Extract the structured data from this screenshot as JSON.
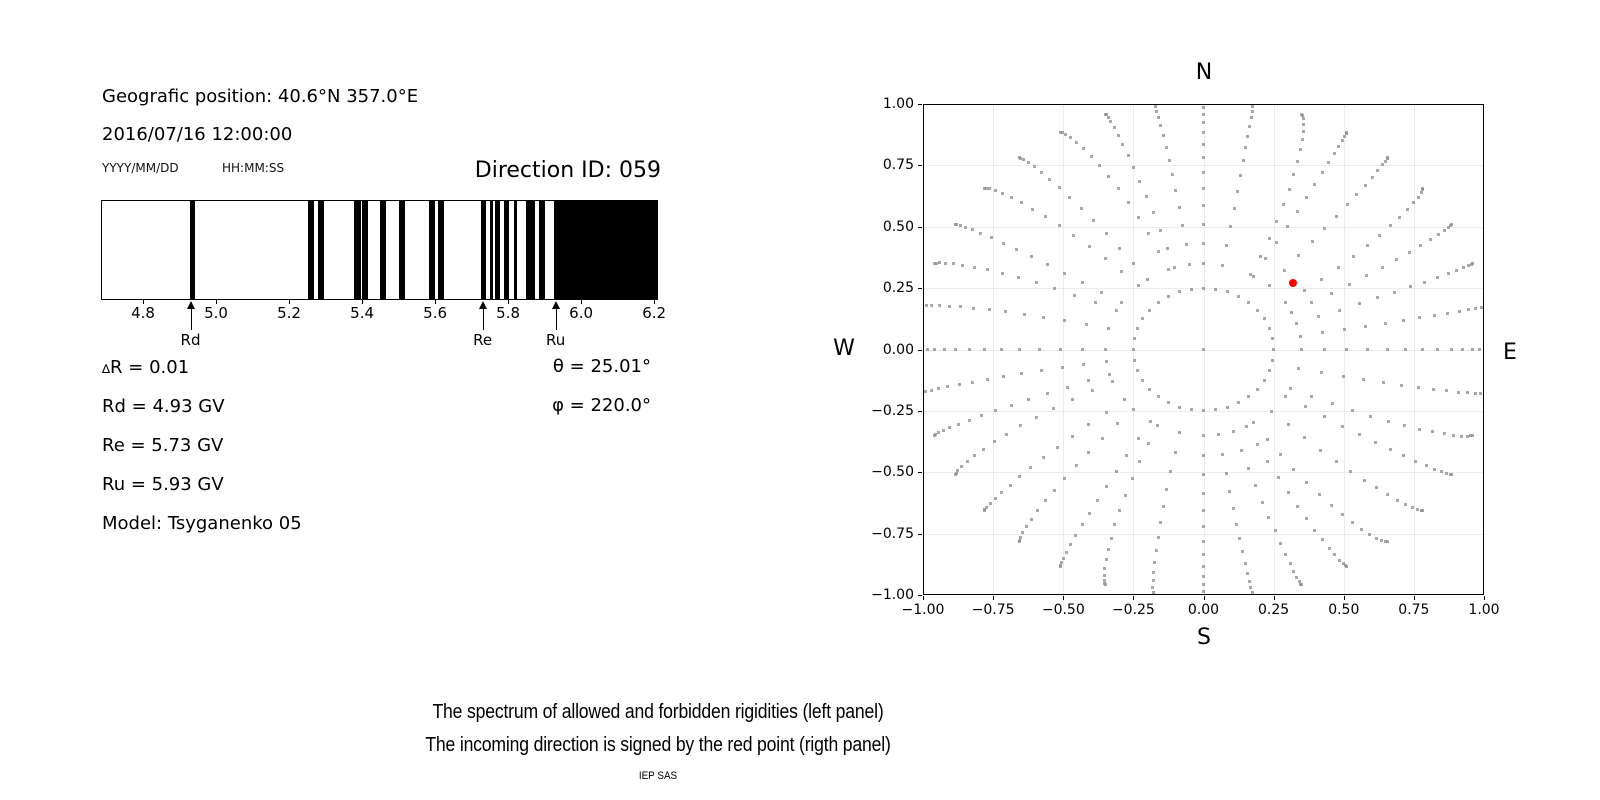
{
  "left_panel": {
    "geo_position": "Geografic position: 40.6°N 357.0°E",
    "datetime": "2016/07/16 12:00:00",
    "date_format": "YYYY/MM/DD",
    "time_format": "HH:MM:SS",
    "direction_id": "Direction ID: 059",
    "delta_symbol": "∆",
    "delta_r": "R = 0.01",
    "rd": "Rd = 4.93 GV",
    "re": "Re = 5.73 GV",
    "ru": "Ru = 5.93 GV",
    "model": "Model: Tsyganenko 05",
    "theta": "θ = 25.01°",
    "phi": "φ = 220.0°"
  },
  "caption": {
    "line1": "The spectrum of allowed and forbidden rigidities (left panel)",
    "line2": "The incoming direction is signed by the red point (rigth panel)",
    "credit": "IEP SAS"
  },
  "chart_data": [
    {
      "type": "barcode",
      "title": "Rigidity spectrum of allowed (white) and forbidden (black) bands",
      "x_range": [
        4.685,
        6.205
      ],
      "x_ticks": {
        "values": [
          4.8,
          5.0,
          5.2,
          5.4,
          5.6,
          5.8,
          6.0,
          6.2
        ],
        "labels": [
          "4.8",
          "5.0",
          "5.2",
          "5.4",
          "5.6",
          "5.8",
          "6.0",
          "6.2"
        ]
      },
      "forbidden_color": "#000000",
      "allowed_color": "#ffffff",
      "forbidden_bands": [
        [
          4.925,
          4.941
        ],
        [
          5.248,
          5.267
        ],
        [
          5.276,
          5.292
        ],
        [
          5.376,
          5.394
        ],
        [
          5.398,
          5.414
        ],
        [
          5.447,
          5.463
        ],
        [
          5.497,
          5.515
        ],
        [
          5.581,
          5.597
        ],
        [
          5.606,
          5.621
        ],
        [
          5.724,
          5.736
        ],
        [
          5.747,
          5.756
        ],
        [
          5.762,
          5.776
        ],
        [
          5.785,
          5.799
        ],
        [
          5.813,
          5.822
        ],
        [
          5.847,
          5.872
        ],
        [
          5.883,
          5.899
        ],
        [
          5.922,
          6.205
        ]
      ],
      "markers": [
        {
          "label": "Rd",
          "value": 4.93
        },
        {
          "label": "Re",
          "value": 5.73
        },
        {
          "label": "Ru",
          "value": 5.93
        }
      ]
    },
    {
      "type": "scatter",
      "title": "Incoming direction map",
      "x_range": [
        -1.0,
        1.0
      ],
      "y_range": [
        -1.0,
        1.0
      ],
      "grid": true,
      "grid_color": "#ececec",
      "dot_color": "#8f8f8f",
      "ticks": {
        "values": [
          -1.0,
          -0.75,
          -0.5,
          -0.25,
          0.0,
          0.25,
          0.5,
          0.75,
          1.0
        ],
        "labels": [
          "−1.00",
          "−0.75",
          "−0.50",
          "−0.25",
          "0.00",
          "0.25",
          "0.50",
          "0.75",
          "1.00"
        ]
      },
      "compass": {
        "north": "N",
        "south": "S",
        "west": "W",
        "east": "E"
      },
      "center_dot": {
        "x": 0,
        "y": 0
      },
      "inner_ring": {
        "radius": 0.25,
        "count": 36
      },
      "spokes": {
        "azimuth_start_deg": 0,
        "azimuth_step_deg": 10,
        "count": 36,
        "zenith_deg": [
          20,
          25,
          30,
          35,
          40,
          45,
          50,
          55,
          60,
          65,
          70,
          75,
          80,
          85,
          90
        ],
        "radius_rule": "sin(zenith) * 1.02",
        "radius_scale": 1.02,
        "inner_drift_deg": [
          0,
          1,
          9,
          1,
          2,
          7,
          4,
          2,
          1,
          0,
          3,
          7,
          3,
          6,
          9,
          4,
          2,
          1,
          0,
          4,
          8,
          3,
          6,
          4,
          8,
          3,
          2,
          0,
          4,
          7,
          3,
          8,
          5,
          9,
          3,
          2
        ],
        "drift_decay_exp": 1.3
      },
      "red_point": {
        "x": 0.32,
        "y": 0.272,
        "color": "#ff0000"
      }
    }
  ]
}
